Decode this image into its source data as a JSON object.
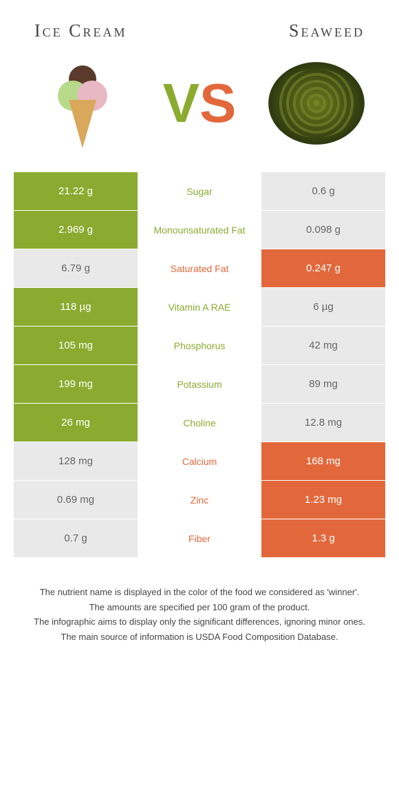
{
  "header": {
    "left": "Ice Cream",
    "right": "Seaweed"
  },
  "vs": {
    "v": "V",
    "s": "S"
  },
  "colors": {
    "left_win": "#8aab2f",
    "right_win": "#e2683b",
    "neutral": "#e9e9e9",
    "neutral_text": "#666666",
    "white": "#ffffff"
  },
  "rows": [
    {
      "label": "Sugar",
      "left": "21.22 g",
      "right": "0.6 g",
      "winner": "left"
    },
    {
      "label": "Monounsaturated Fat",
      "left": "2.969 g",
      "right": "0.098 g",
      "winner": "left"
    },
    {
      "label": "Saturated Fat",
      "left": "6.79 g",
      "right": "0.247 g",
      "winner": "right"
    },
    {
      "label": "Vitamin A RAE",
      "left": "118 µg",
      "right": "6 µg",
      "winner": "left"
    },
    {
      "label": "Phosphorus",
      "left": "105 mg",
      "right": "42 mg",
      "winner": "left"
    },
    {
      "label": "Potassium",
      "left": "199 mg",
      "right": "89 mg",
      "winner": "left"
    },
    {
      "label": "Choline",
      "left": "26 mg",
      "right": "12.8 mg",
      "winner": "left"
    },
    {
      "label": "Calcium",
      "left": "128 mg",
      "right": "168 mg",
      "winner": "right"
    },
    {
      "label": "Zinc",
      "left": "0.69 mg",
      "right": "1.23 mg",
      "winner": "right"
    },
    {
      "label": "Fiber",
      "left": "0.7 g",
      "right": "1.3 g",
      "winner": "right"
    }
  ],
  "footnote": [
    "The nutrient name is displayed in the color of the food we considered as 'winner'.",
    "The amounts are specified per 100 gram of the product.",
    "The infographic aims to display only the significant differences, ignoring minor ones.",
    "The main source of information is USDA Food Composition Database."
  ]
}
